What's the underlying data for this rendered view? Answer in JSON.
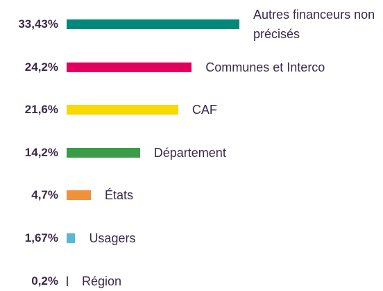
{
  "chart_data": {
    "type": "bar",
    "orientation": "horizontal",
    "categories": [
      "Autres financeurs non précisés",
      "Communes et Interco",
      "CAF",
      "Département",
      "États",
      "Usagers",
      "Région"
    ],
    "values": [
      33.43,
      24.2,
      21.6,
      14.2,
      4.7,
      1.67,
      0.2
    ],
    "value_labels": [
      "33,43%",
      "24,2%",
      "21,6%",
      "14,2%",
      "4,7%",
      "1,67%",
      "0,2%"
    ],
    "colors": [
      "#00897b",
      "#e2005e",
      "#f9d900",
      "#3a9c47",
      "#f0913b",
      "#5bb8d4",
      "#555555"
    ]
  }
}
